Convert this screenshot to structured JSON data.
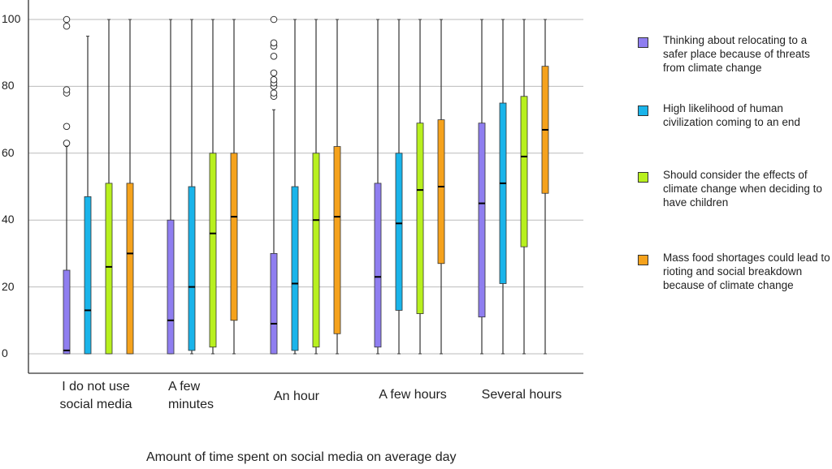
{
  "chart_data": {
    "type": "box",
    "xlabel": "Amount of time spent on social media on average day",
    "ylabel": "",
    "ylim": [
      0,
      100
    ],
    "yticks": [
      0,
      20,
      40,
      60,
      80,
      100
    ],
    "grid": true,
    "legend_position": "right",
    "categories": [
      "I do not use\nsocial media",
      "A few\nminutes",
      "An hour",
      "A few hours",
      "Several hours"
    ],
    "series": [
      {
        "name": "Thinking about relocating to a safer place because of threats from climate change",
        "color": "#8f7ef0",
        "boxes": [
          {
            "min": 0,
            "q1": 0,
            "median": 1,
            "q3": 25,
            "max": 62,
            "outliers": [
              63,
              68,
              78,
              79,
              98,
              100
            ]
          },
          {
            "min": 0,
            "q1": 0,
            "median": 10,
            "q3": 40,
            "max": 100,
            "outliers": []
          },
          {
            "min": 0,
            "q1": 0,
            "median": 9,
            "q3": 30,
            "max": 73,
            "outliers": [
              77,
              78,
              80,
              81,
              82,
              84,
              89,
              92,
              93,
              100
            ]
          },
          {
            "min": 0,
            "q1": 2,
            "median": 23,
            "q3": 51,
            "max": 100,
            "outliers": []
          },
          {
            "min": 0,
            "q1": 11,
            "median": 45,
            "q3": 69,
            "max": 100,
            "outliers": []
          }
        ]
      },
      {
        "name": "High likelihood of human civilization coming to an end",
        "color": "#1ab4ea",
        "boxes": [
          {
            "min": 0,
            "q1": 0,
            "median": 13,
            "q3": 47,
            "max": 95,
            "outliers": []
          },
          {
            "min": 0,
            "q1": 1,
            "median": 20,
            "q3": 50,
            "max": 100,
            "outliers": []
          },
          {
            "min": 0,
            "q1": 1,
            "median": 21,
            "q3": 50,
            "max": 100,
            "outliers": []
          },
          {
            "min": 0,
            "q1": 13,
            "median": 39,
            "q3": 60,
            "max": 100,
            "outliers": []
          },
          {
            "min": 0,
            "q1": 21,
            "median": 51,
            "q3": 75,
            "max": 100,
            "outliers": []
          }
        ]
      },
      {
        "name": "Should consider the effects of climate change when deciding to have children",
        "color": "#b8f01e",
        "boxes": [
          {
            "min": 0,
            "q1": 0,
            "median": 26,
            "q3": 51,
            "max": 100,
            "outliers": []
          },
          {
            "min": 0,
            "q1": 2,
            "median": 36,
            "q3": 60,
            "max": 100,
            "outliers": []
          },
          {
            "min": 0,
            "q1": 2,
            "median": 40,
            "q3": 60,
            "max": 100,
            "outliers": []
          },
          {
            "min": 0,
            "q1": 12,
            "median": 49,
            "q3": 69,
            "max": 100,
            "outliers": []
          },
          {
            "min": 0,
            "q1": 32,
            "median": 59,
            "q3": 77,
            "max": 100,
            "outliers": []
          }
        ]
      },
      {
        "name": "Mass food shortages could lead to rioting and social breakdown because of climate change",
        "color": "#f5a21c",
        "boxes": [
          {
            "min": 0,
            "q1": 0,
            "median": 30,
            "q3": 51,
            "max": 100,
            "outliers": []
          },
          {
            "min": 0,
            "q1": 10,
            "median": 41,
            "q3": 60,
            "max": 100,
            "outliers": []
          },
          {
            "min": 0,
            "q1": 6,
            "median": 41,
            "q3": 62,
            "max": 100,
            "outliers": []
          },
          {
            "min": 0,
            "q1": 27,
            "median": 50,
            "q3": 70,
            "max": 100,
            "outliers": []
          },
          {
            "min": 0,
            "q1": 48,
            "median": 67,
            "q3": 86,
            "max": 100,
            "outliers": []
          }
        ]
      }
    ]
  }
}
